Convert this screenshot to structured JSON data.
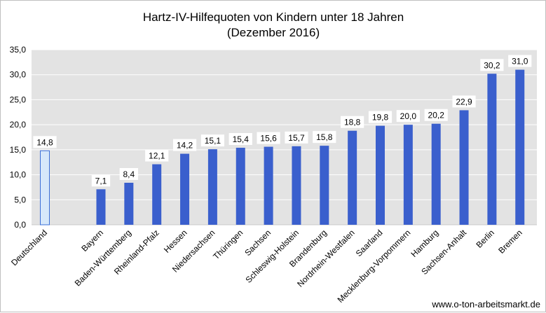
{
  "chart_data": {
    "type": "bar",
    "title_lines": [
      "Hartz-IV-Hilfequoten von Kindern unter 18 Jahren",
      "(Dezember 2016)"
    ],
    "categories": [
      "Deutschland",
      "Bayern",
      "Baden-Württemberg",
      "Rheinland-Pfalz",
      "Hessen",
      "Niedersachsen",
      "Thüringen",
      "Sachsen",
      "Schleswig-Holstein",
      "Brandenburg",
      "Nordrhein-Westfalen",
      "Saarland",
      "Mecklenburg-Vorpommern",
      "Hamburg",
      "Sachsen-Anhalt",
      "Berlin",
      "Bremen"
    ],
    "values": [
      14.8,
      7.1,
      8.4,
      12.1,
      14.2,
      15.1,
      15.4,
      15.6,
      15.7,
      15.8,
      18.8,
      19.8,
      20.0,
      20.2,
      22.9,
      30.2,
      31.0
    ],
    "value_labels": [
      "14,8",
      "7,1",
      "8,4",
      "12,1",
      "14,2",
      "15,1",
      "15,4",
      "15,6",
      "15,7",
      "15,8",
      "18,8",
      "19,8",
      "20,0",
      "20,2",
      "22,9",
      "30,2",
      "31,0"
    ],
    "ylim": [
      0,
      35
    ],
    "yticks": [
      "0,0",
      "5,0",
      "10,0",
      "15,0",
      "20,0",
      "25,0",
      "30,0",
      "35,0"
    ],
    "grid": true,
    "highlight_category": "Deutschland",
    "colors": {
      "bar": "#3a5fcd",
      "highlight_fill": "#d6e8fa",
      "highlight_stroke": "#3a6fd8",
      "plot_background": "#e3e3e3",
      "grid": "#ffffff"
    },
    "source": "www.o-ton-arbeitsmarkt.de"
  }
}
